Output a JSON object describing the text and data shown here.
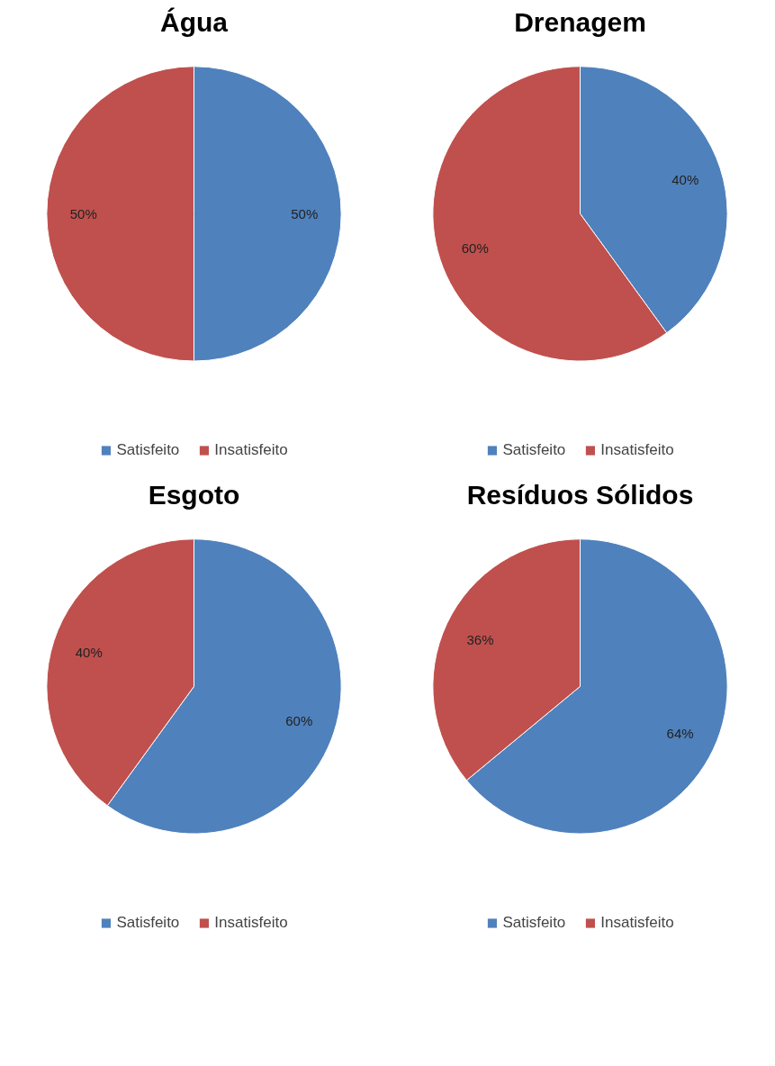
{
  "chart_data": [
    {
      "type": "pie",
      "title": "Água",
      "categories": [
        "Satisfeito",
        "Insatisfeito"
      ],
      "values": [
        50,
        50
      ],
      "colors": [
        "#4f81bd",
        "#c0504d"
      ],
      "value_labels": [
        "50%",
        "50%"
      ],
      "legend": "bottom"
    },
    {
      "type": "pie",
      "title": "Drenagem",
      "categories": [
        "Satisfeito",
        "Insatisfeito"
      ],
      "values": [
        40,
        60
      ],
      "colors": [
        "#4f81bd",
        "#c0504d"
      ],
      "value_labels": [
        "40%",
        "60%"
      ],
      "legend": "bottom"
    },
    {
      "type": "pie",
      "title": "Esgoto",
      "categories": [
        "Satisfeito",
        "Insatisfeito"
      ],
      "values": [
        60,
        40
      ],
      "colors": [
        "#4f81bd",
        "#c0504d"
      ],
      "value_labels": [
        "60%",
        "40%"
      ],
      "legend": "bottom"
    },
    {
      "type": "pie",
      "title": "Resíduos Sólidos",
      "categories": [
        "Satisfeito",
        "Insatisfeito"
      ],
      "values": [
        64,
        36
      ],
      "colors": [
        "#4f81bd",
        "#c0504d"
      ],
      "value_labels": [
        "64%",
        "36%"
      ],
      "legend": "bottom"
    }
  ]
}
